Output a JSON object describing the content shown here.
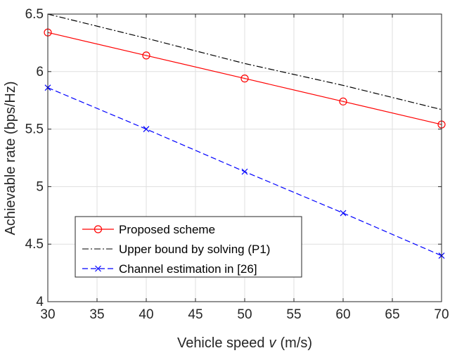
{
  "chart_data": {
    "type": "line",
    "xlabel": "Vehicle speed",
    "xlabel_var": "v",
    "xlabel_unit": "(m/s)",
    "ylabel": "Achievable rate (bps/Hz)",
    "xlim": [
      30,
      70
    ],
    "ylim": [
      4,
      6.5
    ],
    "x_ticks": [
      "30",
      "35",
      "40",
      "45",
      "50",
      "55",
      "60",
      "65",
      "70"
    ],
    "y_ticks": [
      "4",
      "4.5",
      "5",
      "5.5",
      "6",
      "6.5"
    ],
    "grid": true,
    "legend_position": "bottom-left",
    "series": [
      {
        "name": "Proposed scheme",
        "color": "#ff0000",
        "line_style": "solid",
        "marker": "circle",
        "x": [
          30,
          40,
          50,
          60,
          70
        ],
        "y": [
          6.34,
          6.14,
          5.94,
          5.74,
          5.54
        ]
      },
      {
        "name": "Upper bound by solving (P1)",
        "color": "#000000",
        "line_style": "dash-dot",
        "marker": "none",
        "x": [
          30,
          40,
          50,
          60,
          70
        ],
        "y": [
          6.5,
          6.29,
          6.07,
          5.88,
          5.67
        ]
      },
      {
        "name": "Channel estimation in [26]",
        "color": "#0000ff",
        "line_style": "dashed",
        "marker": "x",
        "x": [
          30,
          40,
          50,
          60,
          70
        ],
        "y": [
          5.86,
          5.5,
          5.13,
          4.77,
          4.4
        ]
      }
    ]
  }
}
